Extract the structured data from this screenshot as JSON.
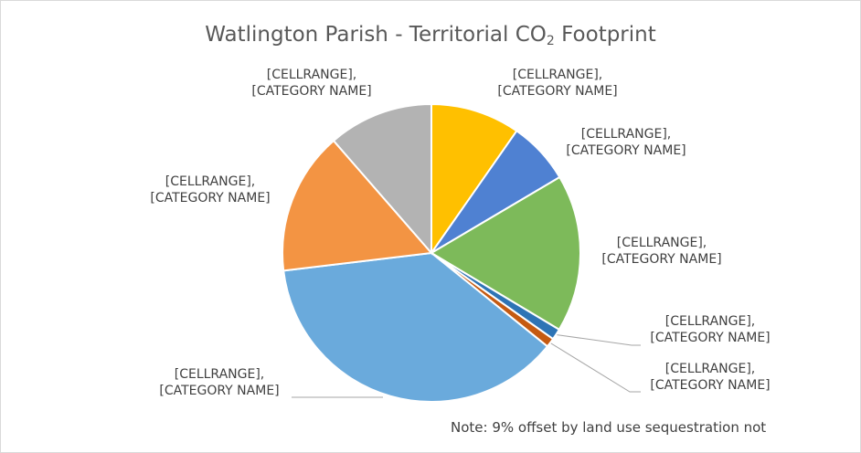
{
  "chart_data": {
    "type": "pie",
    "title": {
      "prefix": "Watlington Parish - Territorial CO",
      "subscript": "2",
      "suffix": " Footprint"
    },
    "note": "Note: 9% offset by land use sequestration not",
    "slices": [
      {
        "label_line1": "[CELLRANGE],",
        "label_line2": "[CATEGORY NAME]",
        "value": 9.7,
        "color": "#ffc000"
      },
      {
        "label_line1": "[CELLRANGE],",
        "label_line2": "[CATEGORY NAME]",
        "value": 6.8,
        "color": "#4f81d2"
      },
      {
        "label_line1": "[CELLRANGE],",
        "label_line2": "[CATEGORY NAME]",
        "value": 17.1,
        "color": "#7dba5a"
      },
      {
        "label_line1": "[CELLRANGE],",
        "label_line2": "[CATEGORY NAME]",
        "value": 1.2,
        "color": "#2e74b5"
      },
      {
        "label_line1": "[CELLRANGE],",
        "label_line2": "[CATEGORY NAME]",
        "value": 1.0,
        "color": "#c55a11"
      },
      {
        "label_line1": "[CELLRANGE],",
        "label_line2": "[CATEGORY NAME]",
        "value": 37.3,
        "color": "#6aaadc"
      },
      {
        "label_line1": "[CELLRANGE],",
        "label_line2": "[CATEGORY NAME]",
        "value": 15.5,
        "color": "#f39443"
      },
      {
        "label_line1": "[CELLRANGE],",
        "label_line2": "[CATEGORY NAME]",
        "value": 11.4,
        "color": "#b3b3b3"
      }
    ]
  }
}
